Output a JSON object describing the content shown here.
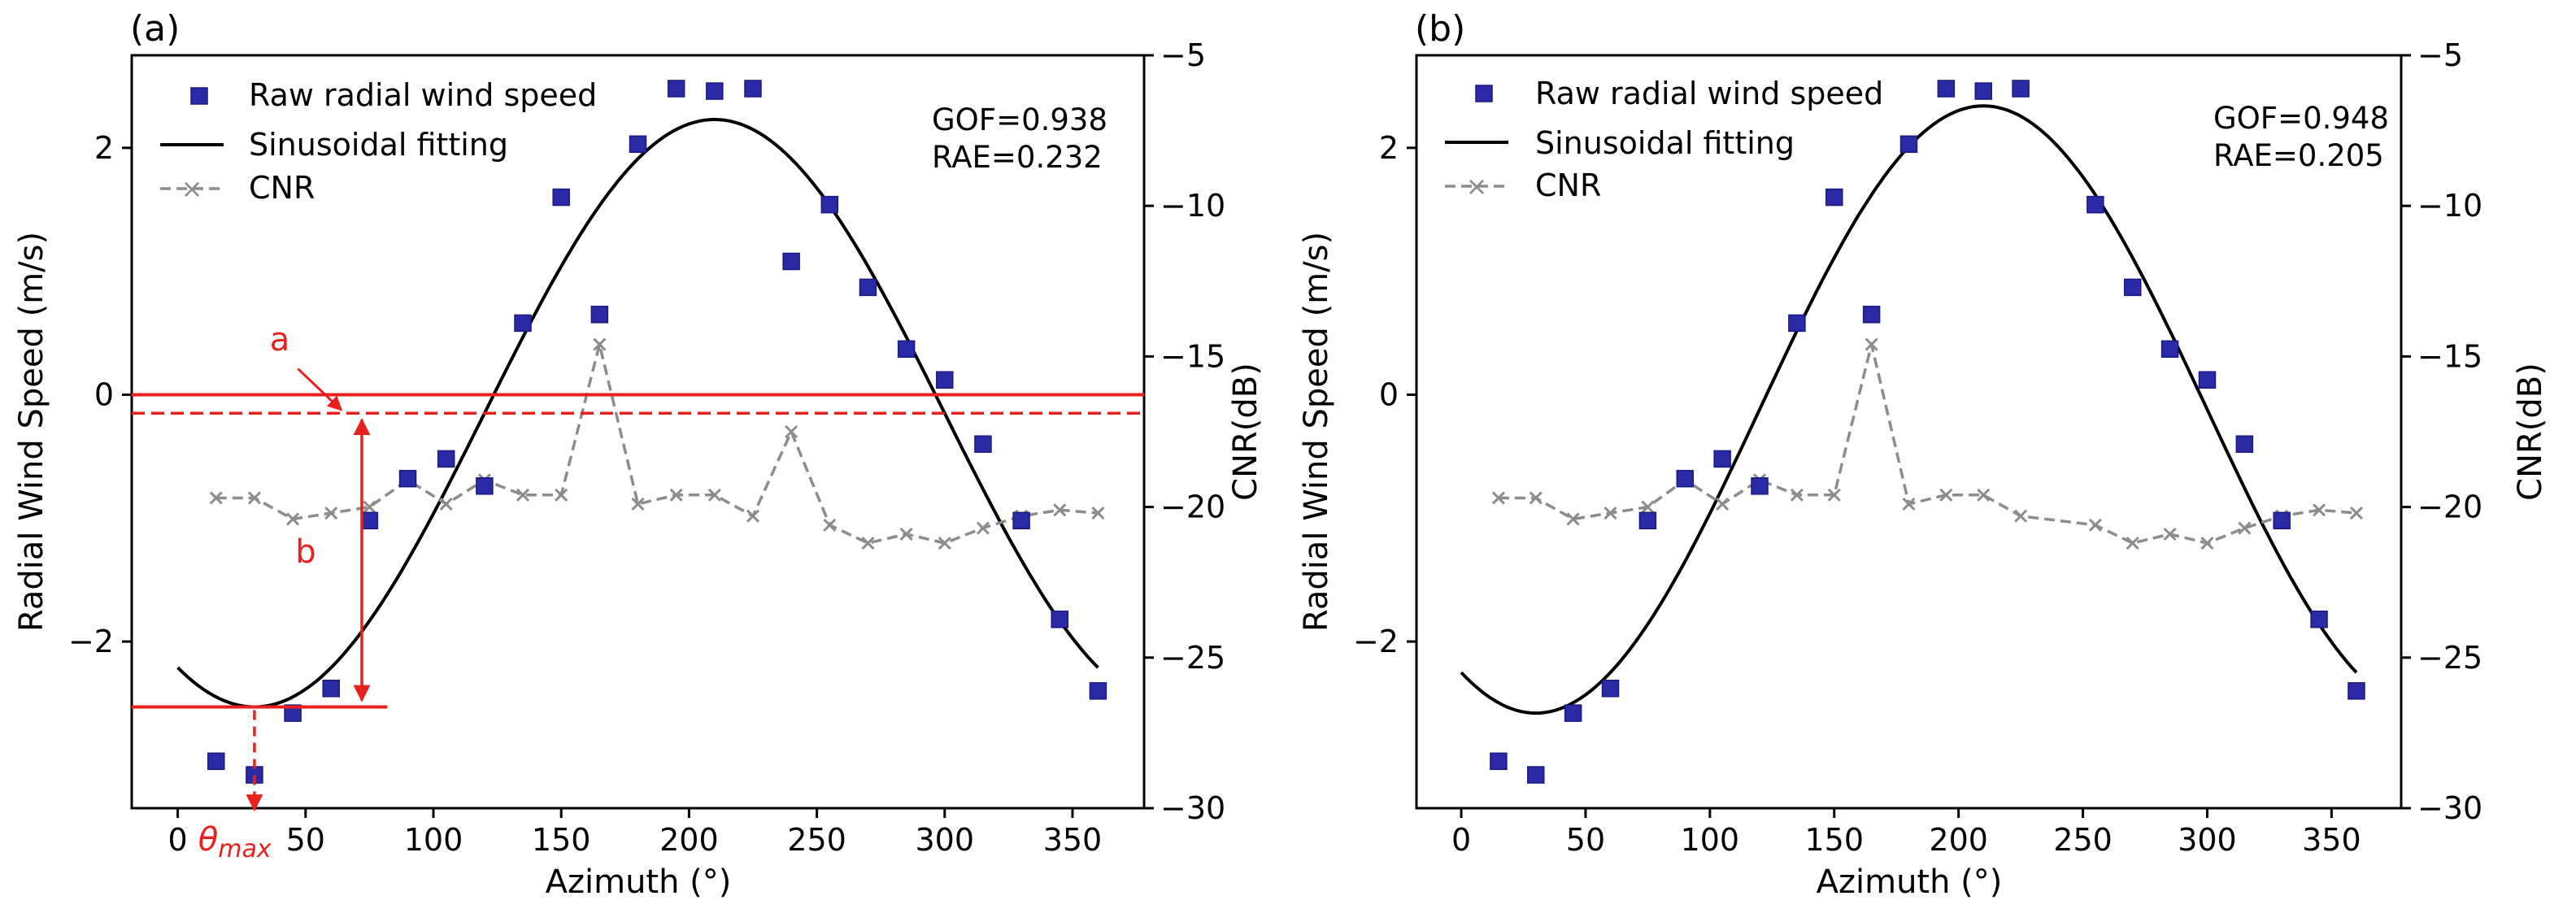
{
  "chart_data": [
    {
      "panel_label": "(a)",
      "type": "scatter+line",
      "xlabel": "Azimuth (°)",
      "ylabel": "Radial Wind Speed (m/s)",
      "y2label": "CNR(dB)",
      "xlim": [
        -18,
        378
      ],
      "ylim": [
        -3.35,
        2.75
      ],
      "y2lim": [
        -30,
        -5
      ],
      "xticks": [
        0,
        50,
        100,
        150,
        200,
        250,
        300,
        350
      ],
      "yticks": [
        -2,
        0,
        2
      ],
      "y2ticks": [
        -30,
        -25,
        -20,
        -15,
        -10,
        -5
      ],
      "stats": {
        "gof": "GOF=0.938",
        "rae": "RAE=0.232"
      },
      "legend": {
        "scatter": "Raw radial wind speed",
        "fit": "Sinusoidal fitting",
        "cnr": "CNR"
      },
      "colors": {
        "scatter": "#2a2aa6",
        "fit": "#000000",
        "cnr": "#8c8c8c",
        "annotation": "#e8211d"
      },
      "fit": {
        "offset": -0.15,
        "amplitude": 2.38,
        "phase_deg": 210,
        "x_start": 0,
        "x_end": 360
      },
      "scatter": {
        "x": [
          15,
          30,
          45,
          60,
          75,
          90,
          105,
          120,
          135,
          150,
          165,
          180,
          195,
          210,
          225,
          240,
          255,
          270,
          285,
          300,
          315,
          330,
          345,
          360
        ],
        "y": [
          -2.97,
          -3.08,
          -2.58,
          -2.38,
          -1.02,
          -0.68,
          -0.52,
          -0.74,
          0.58,
          1.6,
          0.65,
          2.03,
          2.48,
          2.46,
          2.48,
          1.08,
          1.54,
          0.87,
          0.37,
          0.12,
          -0.4,
          -1.02,
          -1.82,
          -2.4
        ]
      },
      "cnr": {
        "x": [
          15,
          30,
          45,
          60,
          75,
          90,
          105,
          120,
          135,
          150,
          165,
          180,
          195,
          210,
          225,
          240,
          255,
          270,
          285,
          300,
          315,
          330,
          345,
          360
        ],
        "y": [
          -19.7,
          -19.7,
          -20.4,
          -20.2,
          -20.0,
          -19.1,
          -19.9,
          -19.1,
          -19.6,
          -19.6,
          -14.6,
          -19.9,
          -19.6,
          -19.6,
          -20.3,
          -17.5,
          -20.6,
          -21.2,
          -20.9,
          -21.2,
          -20.7,
          -20.3,
          -20.1,
          -20.2
        ]
      },
      "annotations": {
        "zero_line_y": 0,
        "dashed_line_y": -0.15,
        "min_line_y": -2.53,
        "theta_x": 30,
        "arrow_b_x": 72,
        "label_a": "a",
        "label_b": "b",
        "theta_base": "θ",
        "theta_sub": "max"
      }
    },
    {
      "panel_label": "(b)",
      "type": "scatter+line",
      "xlabel": "Azimuth (°)",
      "ylabel": "Radial Wind Speed (m/s)",
      "y2label": "CNR(dB)",
      "xlim": [
        -18,
        378
      ],
      "ylim": [
        -3.35,
        2.75
      ],
      "y2lim": [
        -30,
        -5
      ],
      "xticks": [
        0,
        50,
        100,
        150,
        200,
        250,
        300,
        350
      ],
      "yticks": [
        -2,
        0,
        2
      ],
      "y2ticks": [
        -30,
        -25,
        -20,
        -15,
        -10,
        -5
      ],
      "stats": {
        "gof": "GOF=0.948",
        "rae": "RAE=0.205"
      },
      "legend": {
        "scatter": "Raw radial wind speed",
        "fit": "Sinusoidal fitting",
        "cnr": "CNR"
      },
      "colors": {
        "scatter": "#2a2aa6",
        "fit": "#000000",
        "cnr": "#8c8c8c"
      },
      "fit": {
        "offset": -0.12,
        "amplitude": 2.46,
        "phase_deg": 210,
        "x_start": 0,
        "x_end": 360
      },
      "scatter": {
        "x": [
          15,
          30,
          45,
          60,
          75,
          90,
          105,
          120,
          135,
          150,
          165,
          180,
          195,
          210,
          225,
          255,
          270,
          285,
          300,
          315,
          330,
          345,
          360
        ],
        "y": [
          -2.97,
          -3.08,
          -2.58,
          -2.38,
          -1.02,
          -0.68,
          -0.52,
          -0.74,
          0.58,
          1.6,
          0.65,
          2.03,
          2.48,
          2.46,
          2.48,
          1.54,
          0.87,
          0.37,
          0.12,
          -0.4,
          -1.02,
          -1.82,
          -2.4
        ]
      },
      "cnr": {
        "x": [
          15,
          30,
          45,
          60,
          75,
          90,
          105,
          120,
          135,
          150,
          165,
          180,
          195,
          210,
          225,
          255,
          270,
          285,
          300,
          315,
          330,
          345,
          360
        ],
        "y": [
          -19.7,
          -19.7,
          -20.4,
          -20.2,
          -20.0,
          -19.1,
          -19.9,
          -19.1,
          -19.6,
          -19.6,
          -14.6,
          -19.9,
          -19.6,
          -19.6,
          -20.3,
          -20.6,
          -21.2,
          -20.9,
          -21.2,
          -20.7,
          -20.3,
          -20.1,
          -20.2
        ]
      }
    }
  ]
}
